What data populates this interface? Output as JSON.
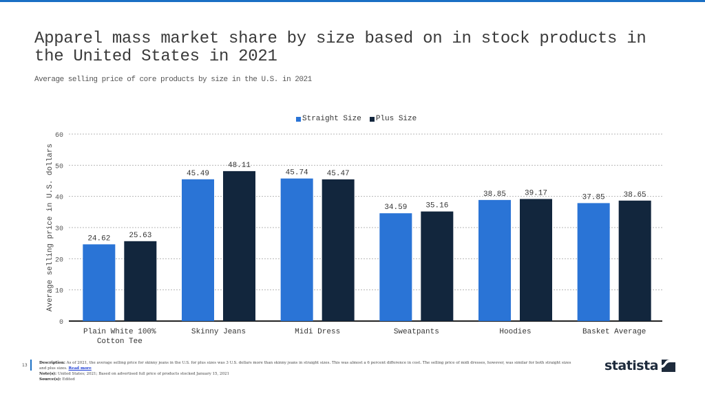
{
  "header": {
    "title": "Apparel mass market share by size based on in stock products in the United States in 2021",
    "subtitle": "Average selling price of core products by size in the U.S. in 2021"
  },
  "colors": {
    "accent": "#1a6fc4",
    "straight": "#2a74d6",
    "plus": "#12263d"
  },
  "chart_data": {
    "type": "bar",
    "title": "Apparel mass market share by size based on in stock products in the United States in 2021",
    "subtitle": "Average selling price of core products by size in the U.S. in 2021",
    "xlabel": "",
    "ylabel": "Average selling price in U.S. dollars",
    "ylim": [
      0,
      60
    ],
    "yticks": [
      0,
      10,
      20,
      30,
      40,
      50,
      60
    ],
    "grid": true,
    "legend_position": "top-center",
    "categories": [
      "Plain White 100% Cotton Tee",
      "Skinny Jeans",
      "Midi Dress",
      "Sweatpants",
      "Hoodies",
      "Basket Average"
    ],
    "series": [
      {
        "name": "Straight Size",
        "color": "#2a74d6",
        "values": [
          24.62,
          45.49,
          45.74,
          34.59,
          38.85,
          37.85
        ],
        "labels": [
          "24.62",
          "45.49",
          "45.74",
          "34.59",
          "38.85",
          "37.85"
        ]
      },
      {
        "name": "Plus Size",
        "color": "#12263d",
        "values": [
          25.63,
          48.11,
          45.47,
          35.16,
          39.17,
          38.65
        ],
        "labels": [
          "25.63",
          "48.11",
          "45.47",
          "35.16",
          "39.17",
          "38.65"
        ]
      }
    ]
  },
  "footer": {
    "page_number": "13",
    "description_label": "Description:",
    "description_text": " As of 2021, the average selling price for skinny jeans in the U.S. for plus sizes was 3 U.S. dollars more than skinny jeans in straight sizes. This was almost a 6 percent difference in cost. The selling price of midi dresses, however, was similar for both straight sizes and plus sizes. ",
    "read_more": "Read more",
    "note_label": "Note(s):",
    "note_text": " United States; 2021; Based on advertised full price of products stocked January 15, 2021",
    "source_label": "Source(s):",
    "source_text": " Edited"
  },
  "logo": {
    "text": "statista",
    "icon": "statista-logo-icon"
  }
}
